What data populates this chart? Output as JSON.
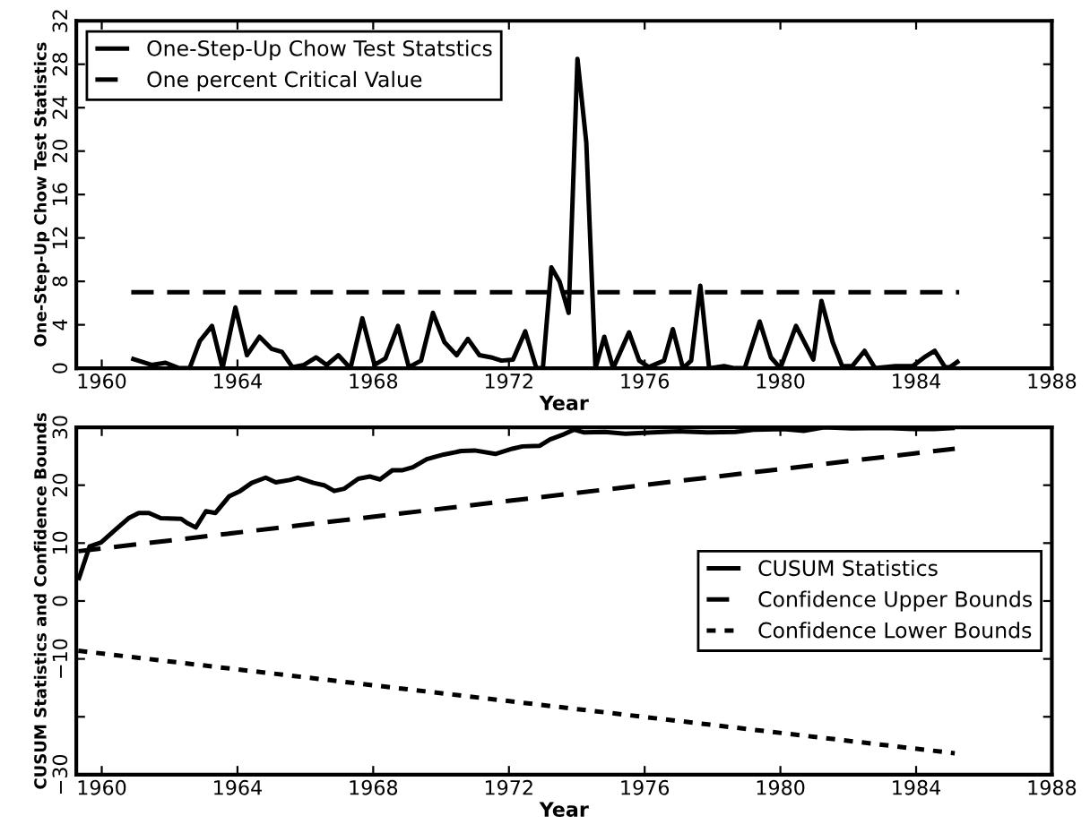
{
  "chart_data": [
    {
      "type": "line",
      "xlabel": "Year",
      "ylabel": "One-Step-Up Chow Test Statistics",
      "xlim": [
        1959.25,
        1988
      ],
      "xticks": [
        1960,
        1964,
        1968,
        1972,
        1976,
        1980,
        1984,
        1988
      ],
      "ylim": [
        0,
        32
      ],
      "yticks": [
        0,
        4,
        8,
        12,
        16,
        20,
        24,
        28,
        32
      ],
      "legend": "top left",
      "grid": false,
      "marker": "none",
      "series": [
        {
          "name": "One-Step-Up Chow Test Statstics",
          "color": "#000000",
          "line_style": "solid",
          "x": [
            1960.87,
            1961.47,
            1961.88,
            1962.28,
            1962.59,
            1962.89,
            1963.25,
            1963.56,
            1963.94,
            1964.28,
            1964.65,
            1965.0,
            1965.31,
            1965.62,
            1965.96,
            1966.32,
            1966.63,
            1966.97,
            1967.33,
            1967.68,
            1968.04,
            1968.36,
            1968.73,
            1969.05,
            1969.41,
            1969.76,
            1970.1,
            1970.46,
            1970.79,
            1971.13,
            1971.47,
            1971.78,
            1972.12,
            1972.48,
            1972.81,
            1973.0,
            1973.25,
            1973.49,
            1973.76,
            1974.02,
            1974.28,
            1974.55,
            1974.81,
            1975.07,
            1975.54,
            1975.84,
            1976.12,
            1976.57,
            1976.83,
            1977.13,
            1977.37,
            1977.64,
            1977.9,
            1978.34,
            1978.65,
            1978.95,
            1979.39,
            1979.72,
            1980.0,
            1980.46,
            1980.97,
            1981.21,
            1981.54,
            1981.82,
            1982.12,
            1982.48,
            1982.79,
            1983.39,
            1983.9,
            1984.24,
            1984.55,
            1984.85,
            1985.0,
            1985.27
          ],
          "values": [
            0.9,
            0.3,
            0.5,
            0,
            0,
            2.5,
            3.9,
            0,
            5.6,
            1.2,
            2.9,
            1.8,
            1.5,
            0.1,
            0.3,
            1.0,
            0.3,
            1.2,
            0,
            4.6,
            0.3,
            0.9,
            3.9,
            0.1,
            0.7,
            5.1,
            2.4,
            1.2,
            2.7,
            1.2,
            1.0,
            0.7,
            0.8,
            3.4,
            0,
            0,
            9.3,
            8.0,
            5.1,
            28.5,
            20.8,
            0,
            2.9,
            0,
            3.3,
            0.7,
            0.1,
            0.7,
            3.6,
            0,
            0.7,
            7.6,
            0,
            0.2,
            0,
            0,
            4.3,
            1.0,
            0,
            3.9,
            0.8,
            6.2,
            2.4,
            0.2,
            0.2,
            1.6,
            0,
            0.2,
            0.2,
            1.0,
            1.6,
            0.1,
            0.1,
            0.7
          ]
        },
        {
          "name": "One percent Critical Value",
          "color": "#000000",
          "line_style": "dashed",
          "x": [
            1960.87,
            1985.27
          ],
          "values": [
            7,
            7
          ]
        }
      ]
    },
    {
      "type": "line",
      "xlabel": "Year",
      "ylabel": "CUSUM Statistics and Confidence Bounds",
      "xlim": [
        1959.25,
        1988
      ],
      "xticks": [
        1960,
        1964,
        1968,
        1972,
        1976,
        1980,
        1984,
        1988
      ],
      "ylim": [
        -30,
        30
      ],
      "yticks": [
        {
          "value": -30,
          "label": "−30"
        },
        {
          "value": -20,
          "label": null
        },
        {
          "value": -10,
          "label": "−10"
        },
        0,
        10,
        20,
        30
      ],
      "legend": "right",
      "grid": false,
      "marker": "none",
      "series": [
        {
          "name": "CUSUM Statistics",
          "color": "#000000",
          "line_style": "solid",
          "x": [
            1959.31,
            1959.64,
            1959.98,
            1960.38,
            1960.79,
            1961.09,
            1961.39,
            1961.74,
            1962.34,
            1962.51,
            1962.77,
            1963.07,
            1963.35,
            1963.76,
            1964.08,
            1964.42,
            1964.83,
            1965.13,
            1965.54,
            1965.78,
            1966.24,
            1966.55,
            1966.85,
            1967.15,
            1967.56,
            1967.9,
            1968.2,
            1968.57,
            1968.87,
            1969.17,
            1969.58,
            1970.08,
            1970.59,
            1970.99,
            1971.6,
            1972.1,
            1972.4,
            1972.91,
            1973.21,
            1973.62,
            1973.92,
            1974.22,
            1974.83,
            1975.43,
            1976.24,
            1977.05,
            1977.86,
            1978.67,
            1979.27,
            1980.08,
            1980.69,
            1981.29,
            1982.1,
            1983.11,
            1983.92,
            1984.53,
            1985.14
          ],
          "values": [
            3.6,
            9.4,
            10.1,
            12.2,
            14.3,
            15.2,
            15.2,
            14.3,
            14.2,
            13.5,
            12.7,
            15.5,
            15.2,
            18.1,
            19.0,
            20.4,
            21.3,
            20.5,
            20.9,
            21.3,
            20.4,
            20.0,
            19.0,
            19.4,
            21.1,
            21.5,
            21.0,
            22.6,
            22.6,
            23.1,
            24.5,
            25.3,
            25.9,
            26.0,
            25.4,
            26.3,
            26.7,
            26.8,
            27.9,
            28.8,
            29.6,
            29.1,
            29.2,
            28.9,
            29.1,
            29.3,
            29.1,
            29.2,
            29.6,
            29.7,
            29.4,
            30.0,
            29.8,
            29.9,
            29.7,
            29.7,
            29.9
          ]
        },
        {
          "name": "Confidence Upper Bounds",
          "color": "#000000",
          "line_style": "dashed",
          "x": [
            1959.31,
            1985.14
          ],
          "values": [
            8.6,
            26.3
          ]
        },
        {
          "name": "Confidence Lower Bounds",
          "color": "#000000",
          "line_style": "dotted",
          "x": [
            1959.31,
            1985.14
          ],
          "values": [
            -8.6,
            -26.3
          ]
        }
      ]
    }
  ]
}
